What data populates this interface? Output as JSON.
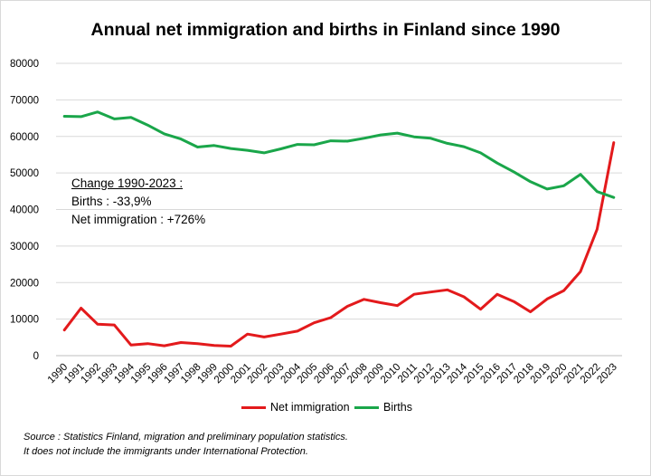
{
  "chart_data": {
    "type": "line",
    "title": "Annual net immigration  and births in Finland since 1990",
    "categories": [
      "1990",
      "1991",
      "1992",
      "1993",
      "1994",
      "1995",
      "1996",
      "1997",
      "1998",
      "1999",
      "2000",
      "2001",
      "2002",
      "2003",
      "2004",
      "2005",
      "2006",
      "2007",
      "2008",
      "2009",
      "2010",
      "2011",
      "2012",
      "2013",
      "2014",
      "2015",
      "2016",
      "2017",
      "2018",
      "2019",
      "2020",
      "2021",
      "2022",
      "2023"
    ],
    "series": [
      {
        "name": "Net immigration",
        "color": "#e31a1c",
        "values": [
          7000,
          13000,
          8600,
          8400,
          2900,
          3300,
          2700,
          3600,
          3300,
          2800,
          2600,
          5900,
          5100,
          5900,
          6700,
          9000,
          10400,
          13500,
          15400,
          14500,
          13700,
          16800,
          17400,
          18000,
          16100,
          12700,
          16800,
          14800,
          12000,
          15500,
          17800,
          23000,
          34600,
          58300
        ]
      },
      {
        "name": "Births",
        "color": "#1aa64a",
        "values": [
          65500,
          65400,
          66700,
          64800,
          65200,
          63100,
          60700,
          59300,
          57100,
          57500,
          56700,
          56200,
          55500,
          56600,
          57800,
          57700,
          58800,
          58700,
          59500,
          60400,
          60900,
          59900,
          59500,
          58100,
          57200,
          55500,
          52700,
          50300,
          47600,
          45600,
          46500,
          49600,
          44900,
          43300
        ]
      }
    ],
    "ylim": [
      0,
      80000
    ],
    "yticks": [
      0,
      10000,
      20000,
      30000,
      40000,
      50000,
      60000,
      70000,
      80000
    ],
    "xlabel": "",
    "ylabel": "",
    "grid": true,
    "legend_position": "bottom"
  },
  "annotation": {
    "heading": "Change 1990-2023 :",
    "births": "Births : -33,9%",
    "net_immigration": "Net immigration : +726%"
  },
  "source": {
    "line1": "Source : Statistics Finland, migration and preliminary population statistics.",
    "line2": "It does not include the immigrants under International Protection."
  }
}
